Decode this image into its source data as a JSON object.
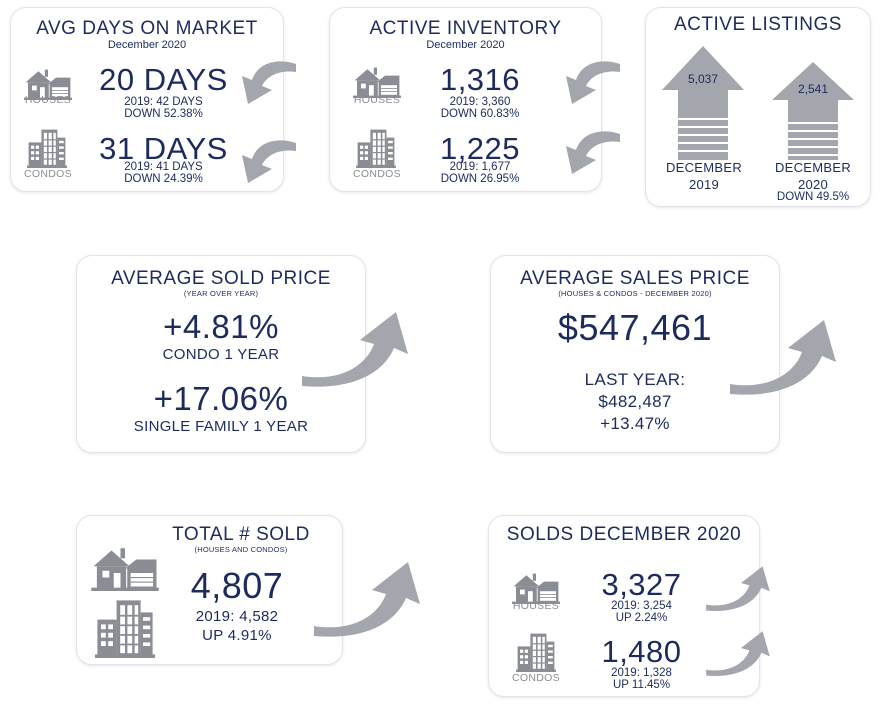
{
  "colors": {
    "navy": "#1c2a5e",
    "grey": "#8a8d93",
    "arrow": "#a3a6ad"
  },
  "days_on_market": {
    "title": "AVG DAYS ON MARKET",
    "period": "December 2020",
    "houses": {
      "label": "HOUSES",
      "value": "20 DAYS",
      "prior": "2019: 42 DAYS",
      "change": "DOWN 52.38%",
      "icon": "house-icon"
    },
    "condos": {
      "label": "CONDOS",
      "value": "31 DAYS",
      "prior": "2019: 41 DAYS",
      "change": "DOWN 24.39%",
      "icon": "building-icon"
    }
  },
  "active_inventory": {
    "title": "ACTIVE INVENTORY",
    "period": "December 2020",
    "houses": {
      "label": "HOUSES",
      "value": "1,316",
      "prior": "2019: 3,360",
      "change": "DOWN 60.83%",
      "icon": "house-icon"
    },
    "condos": {
      "label": "CONDOS",
      "value": "1,225",
      "prior": "2019: 1,677",
      "change": "DOWN 26.95%",
      "icon": "building-icon"
    }
  },
  "active_listings": {
    "title": "ACTIVE LISTINGS",
    "left": {
      "value": "5,037",
      "label_line1": "DECEMBER",
      "label_line2": "2019"
    },
    "right": {
      "value": "2,541",
      "label_line1": "DECEMBER",
      "label_line2": "2020",
      "change": "DOWN 49.5%"
    }
  },
  "avg_sold_price": {
    "title": "AVERAGE SOLD PRICE",
    "subtitle": "(YEAR OVER YEAR)",
    "condo_value": "+4.81%",
    "condo_label": "CONDO 1 YEAR",
    "sf_value": "+17.06%",
    "sf_label": "SINGLE FAMILY 1 YEAR"
  },
  "avg_sales_price": {
    "title": "AVERAGE SALES PRICE",
    "subtitle": "(HOUSES & CONDOS - DECEMBER 2020)",
    "value": "$547,461",
    "last_year_label": "LAST YEAR:",
    "last_year_value": "$482,487",
    "change": "+13.47%"
  },
  "total_sold": {
    "title": "TOTAL # SOLD",
    "subtitle": "(HOUSES AND CONDOS)",
    "value": "4,807",
    "prior": "2019: 4,582",
    "change": "UP 4.91%"
  },
  "solds_dec": {
    "title": "SOLDS DECEMBER 2020",
    "houses": {
      "label": "HOUSES",
      "value": "3,327",
      "prior": "2019: 3,254",
      "change": "UP 2.24%"
    },
    "condos": {
      "label": "CONDOS",
      "value": "1,480",
      "prior": "2019: 1,328",
      "change": "UP 11.45%"
    }
  }
}
